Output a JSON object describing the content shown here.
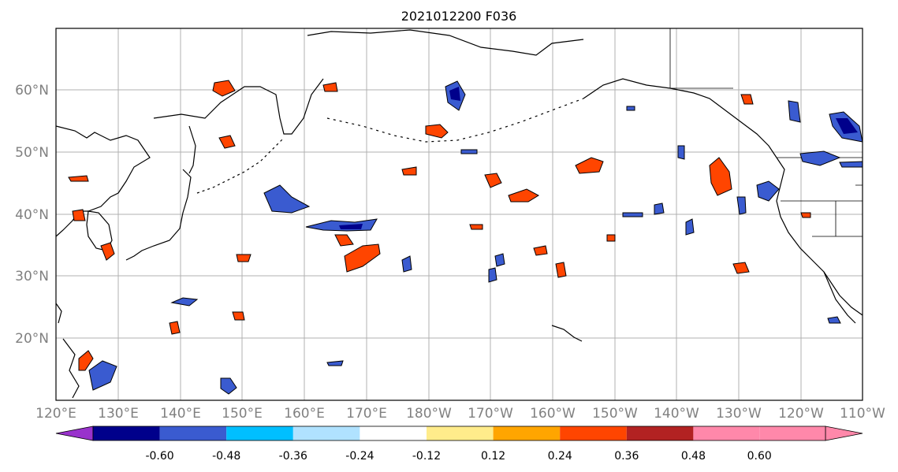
{
  "title": "2021012200 F036",
  "lat_labels": [
    "60°N",
    "50°N",
    "40°N",
    "30°N",
    "20°N"
  ],
  "lon_labels": [
    "120°E",
    "130°E",
    "140°E",
    "150°E",
    "160°E",
    "170°E",
    "180°W",
    "170°W",
    "160°W",
    "150°W",
    "140°W",
    "130°W",
    "120°W",
    "110°W"
  ],
  "colorbar": {
    "colors": [
      "#9932cc",
      "#00008b",
      "#3a5bd0",
      "#00bfff",
      "#b0e2ff",
      "#ffffff",
      "#ffec8b",
      "#ffa500",
      "#ff4500",
      "#b22222",
      "#ff88aa"
    ],
    "tick_labels": [
      "-0.60",
      "-0.48",
      "-0.36",
      "-0.24",
      "-0.12",
      "0.12",
      "0.24",
      "0.36",
      "0.48",
      "0.60"
    ]
  },
  "map_extent": {
    "lon_range": [
      "120°E",
      "110°W"
    ],
    "lat_range": [
      "~10°N",
      "~70°N"
    ]
  }
}
